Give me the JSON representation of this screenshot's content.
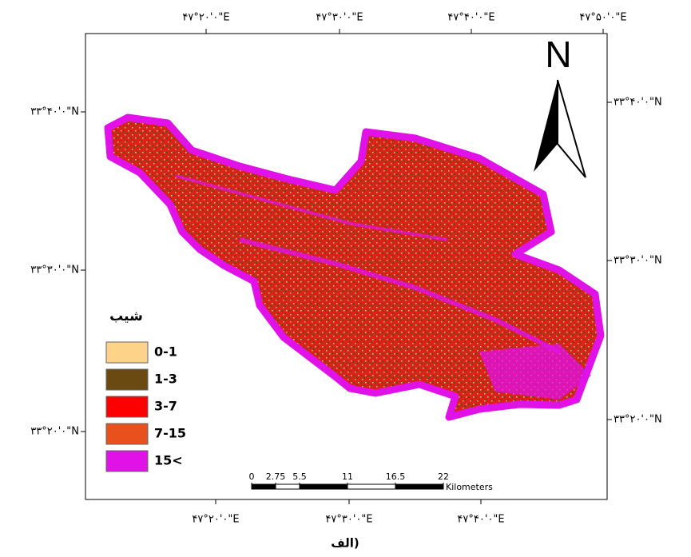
{
  "map": {
    "top_labels": [
      "۴۷°۲۰'۰\"E",
      "۴۷°۳۰'۰\"E",
      "۴۷°۴۰'۰\"E",
      "۴۷°۵۰'۰\"E"
    ],
    "bottom_labels": [
      "۴۷°۲۰'۰\"E",
      "۴۷°۳۰'۰\"E",
      "۴۷°۴۰'۰\"E"
    ],
    "left_labels": [
      "۳۳°۴۰'۰\"N",
      "۳۳°۳۰'۰\"N",
      "۳۳°۲۰'۰\"N"
    ],
    "right_labels": [
      "۳۳°۴۰'۰\"N",
      "۳۳°۳۰'۰\"N",
      "۳۳°۲۰'۰\"N"
    ],
    "north": "N",
    "legend": {
      "title": "شیب",
      "items": [
        {
          "label": "0-1",
          "color": "#fdd38a"
        },
        {
          "label": "1-3",
          "color": "#6b4a12"
        },
        {
          "label": "3-7",
          "color": "#ff0000"
        },
        {
          "label": "7-15",
          "color": "#e8501c"
        },
        {
          "label": "15<",
          "color": "#e012e8"
        }
      ]
    },
    "scale": {
      "ticks": [
        0,
        2.75,
        5.5,
        11,
        16.5,
        22
      ],
      "unit": "Kilometers"
    },
    "caption": "الف)"
  }
}
